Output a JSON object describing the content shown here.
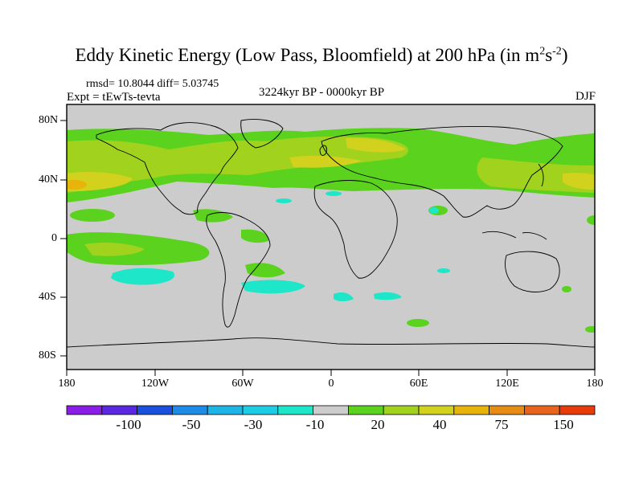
{
  "title": "Eddy Kinetic Energy (Low Pass, Bloomfield) at 200 hPa (in m",
  "title_sup1": "2",
  "title_mid": "s",
  "title_sup2": "-2",
  "title_end": ")",
  "stats": "rmsd= 10.8044  diff= 5.03745",
  "expt": "Expt = tEwTs-tevta",
  "period": "3224kyr BP - 0000kyr BP",
  "season": "DJF",
  "lat_labels": [
    "80N",
    "40N",
    "0",
    "40S",
    "80S"
  ],
  "lon_labels": [
    "180",
    "120W",
    "60W",
    "0",
    "60E",
    "120E",
    "180"
  ],
  "colorbar": {
    "colors": [
      "#8a1ee6",
      "#5a28e0",
      "#1a50dc",
      "#1e8ce6",
      "#1eb4e6",
      "#1ecce6",
      "#1ee6c8",
      "#cccccc",
      "#5ad21e",
      "#a0d21e",
      "#d2d21e",
      "#e6b40a",
      "#e68c14",
      "#e6641e",
      "#e63c0a"
    ],
    "labels": [
      "-100",
      "-50",
      "-30",
      "-10",
      "20",
      "40",
      "75",
      "150"
    ]
  },
  "legend_colors": {
    "land_bg": "#cccccc",
    "pos_low": "#5ad21e",
    "pos_mid": "#a0d21e",
    "pos_high": "#d2d21e",
    "pos_peak": "#e6b40a",
    "neg_low": "#1ee6c8"
  }
}
